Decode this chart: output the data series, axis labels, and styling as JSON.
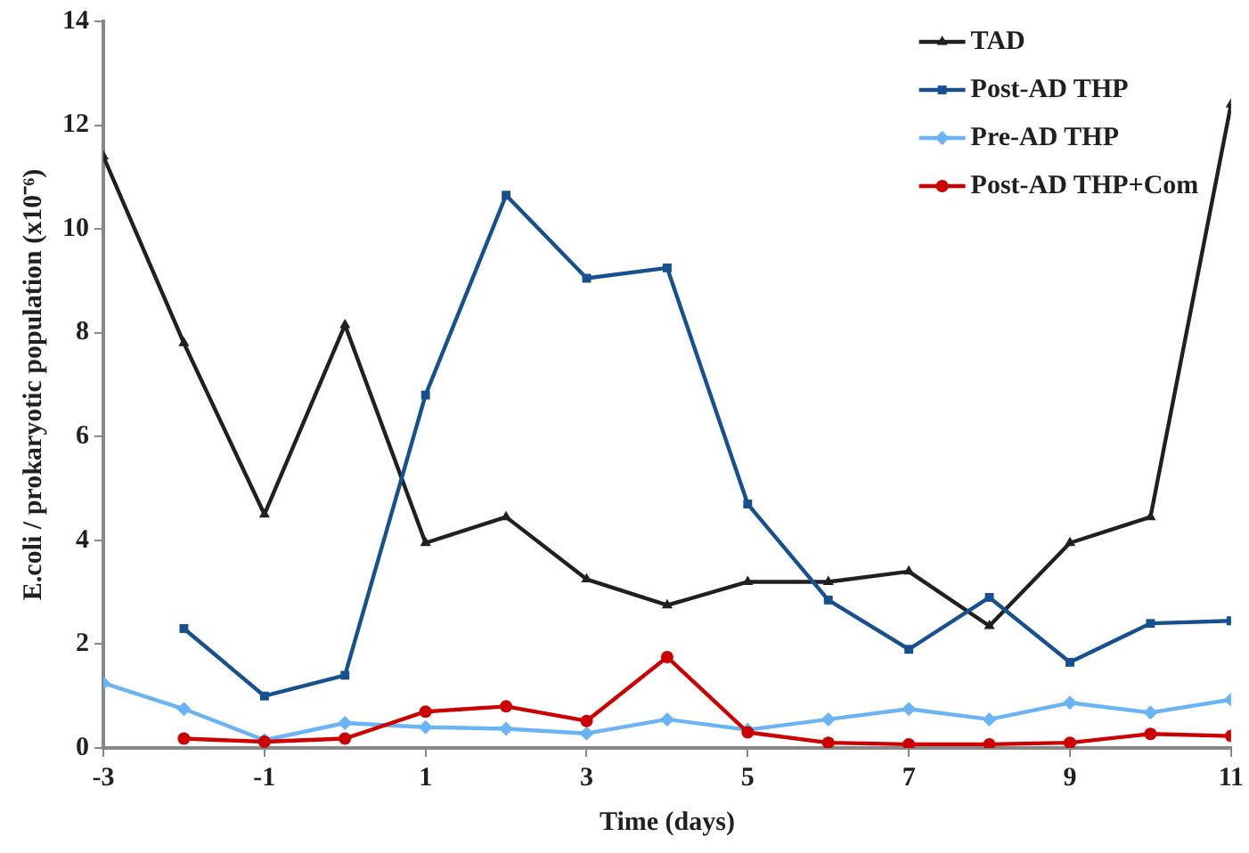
{
  "chart_data": {
    "type": "line",
    "xlabel": "Time (days)",
    "ylabel": "E.coli / prokaryotic population (x10⁻⁶)",
    "x": [
      -3,
      -2,
      -1,
      0,
      1,
      2,
      3,
      4,
      5,
      6,
      7,
      8,
      9,
      10,
      11
    ],
    "xlim": [
      -3,
      11
    ],
    "xticks": [
      -3,
      -1,
      1,
      3,
      5,
      7,
      9,
      11
    ],
    "ylim": [
      0,
      14
    ],
    "yticks": [
      0,
      2,
      4,
      6,
      8,
      10,
      12,
      14
    ],
    "grid": false,
    "legend": "top right",
    "line_style": "solid",
    "series": [
      {
        "name": "TAD",
        "color": "#231f20",
        "marker": "triangle",
        "values": [
          11.4,
          7.8,
          4.5,
          8.15,
          3.95,
          4.45,
          3.25,
          2.75,
          3.2,
          3.2,
          3.4,
          2.35,
          3.95,
          4.45,
          12.4
        ]
      },
      {
        "name": "Post-AD THP",
        "color": "#17508e",
        "marker": "square",
        "values": [
          null,
          2.3,
          1.0,
          1.4,
          6.8,
          10.65,
          9.05,
          9.25,
          4.7,
          2.85,
          1.9,
          2.9,
          1.65,
          2.4,
          2.45
        ]
      },
      {
        "name": "Pre-AD THP",
        "color": "#6ab4f5",
        "marker": "diamond",
        "values": [
          1.25,
          0.75,
          0.15,
          0.48,
          0.4,
          0.37,
          0.28,
          0.55,
          0.35,
          0.55,
          0.75,
          0.55,
          0.87,
          0.68,
          0.93
        ]
      },
      {
        "name": "Post-AD THP+Com",
        "color": "#cc0000",
        "marker": "circle",
        "values": [
          null,
          0.18,
          0.12,
          0.18,
          0.7,
          0.8,
          0.52,
          1.75,
          0.3,
          0.1,
          0.07,
          0.07,
          0.1,
          0.27,
          0.23
        ]
      }
    ]
  }
}
